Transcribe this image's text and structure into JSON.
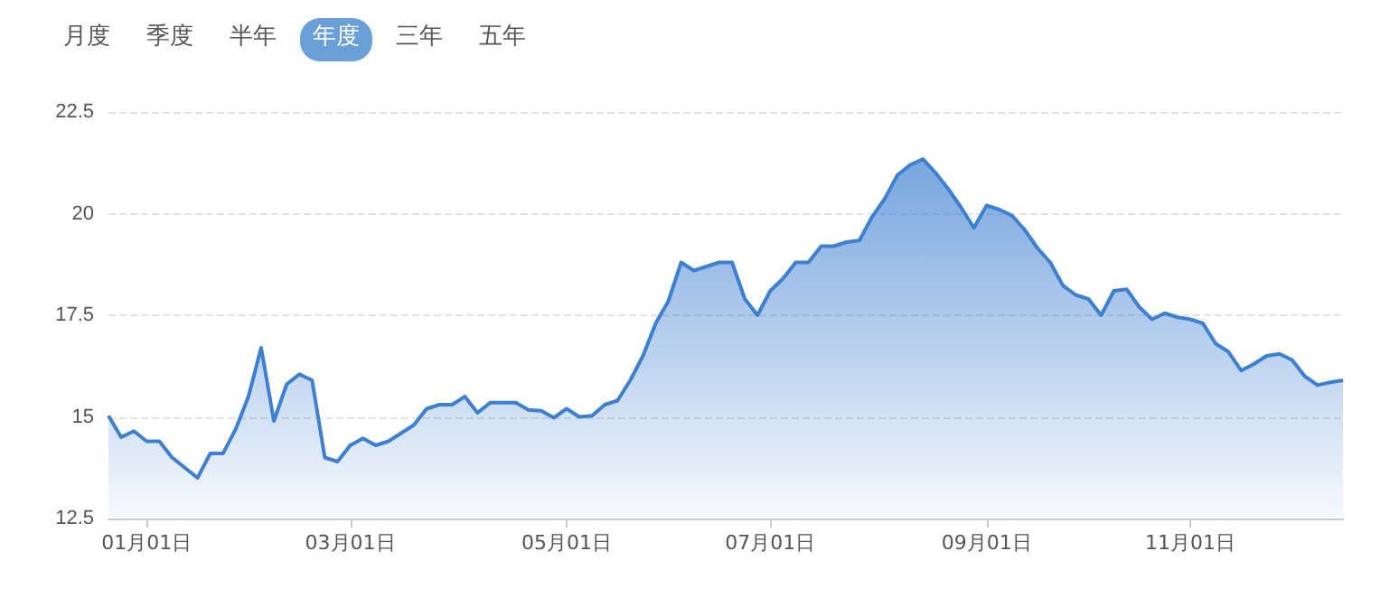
{
  "chart_data": {
    "type": "area",
    "annotations": [
      "月度",
      "季度",
      "半年",
      "年度",
      "三年",
      "五年"
    ],
    "categories": [
      null,
      null,
      null,
      "01月01日",
      null,
      null,
      null,
      null,
      null,
      null,
      null,
      null,
      null,
      null,
      null,
      null,
      null,
      null,
      null,
      "03月01日",
      null,
      null,
      null,
      null,
      null,
      null,
      null,
      null,
      null,
      null,
      null,
      null,
      null,
      null,
      null,
      null,
      "05月01日",
      null,
      null,
      null,
      null,
      null,
      null,
      null,
      null,
      null,
      null,
      null,
      null,
      null,
      null,
      null,
      "07月01日",
      null,
      null,
      null,
      null,
      null,
      null,
      null,
      null,
      null,
      null,
      null,
      null,
      null,
      null,
      null,
      null,
      "09月01日",
      null,
      null,
      null,
      null,
      null,
      null,
      null,
      null,
      null,
      null,
      null,
      null,
      null,
      null,
      null,
      "11月01日",
      null,
      null,
      null,
      null,
      null,
      null,
      null,
      null,
      null,
      null,
      null,
      null
    ],
    "series": [
      {
        "color": "#3d7fd0",
        "values": [
          15.03,
          14.5,
          14.65,
          14.4,
          14.4,
          14.0,
          13.75,
          13.5,
          14.1,
          14.1,
          14.7,
          15.5,
          16.7,
          14.9,
          15.8,
          16.05,
          15.9,
          14.0,
          13.9,
          14.3,
          14.47,
          14.3,
          14.4,
          14.6,
          14.8,
          15.2,
          15.3,
          15.3,
          15.5,
          15.1,
          15.35,
          15.35,
          15.35,
          15.17,
          15.15,
          14.98,
          15.2,
          15.0,
          15.03,
          15.3,
          15.4,
          15.9,
          16.5,
          17.3,
          17.85,
          18.8,
          18.6,
          18.7,
          18.8,
          18.8,
          17.9,
          17.5,
          18.1,
          18.4,
          18.8,
          18.8,
          19.2,
          19.2,
          19.3,
          19.34,
          19.92,
          20.37,
          20.95,
          21.2,
          21.34,
          21.0,
          20.6,
          20.15,
          19.65,
          20.2,
          20.1,
          19.95,
          19.6,
          19.15,
          18.8,
          18.23,
          18.0,
          17.9,
          17.5,
          18.1,
          18.14,
          17.7,
          17.4,
          17.55,
          17.45,
          17.4,
          17.3,
          16.8,
          16.6,
          16.14,
          16.3,
          16.5,
          16.55,
          16.4,
          16.0,
          15.78,
          15.85,
          15.9
        ]
      }
    ],
    "ylim": [
      12.5,
      22.5
    ],
    "yticks": [
      12.5,
      15,
      17.5,
      20,
      22.5
    ],
    "grid": "y"
  }
}
